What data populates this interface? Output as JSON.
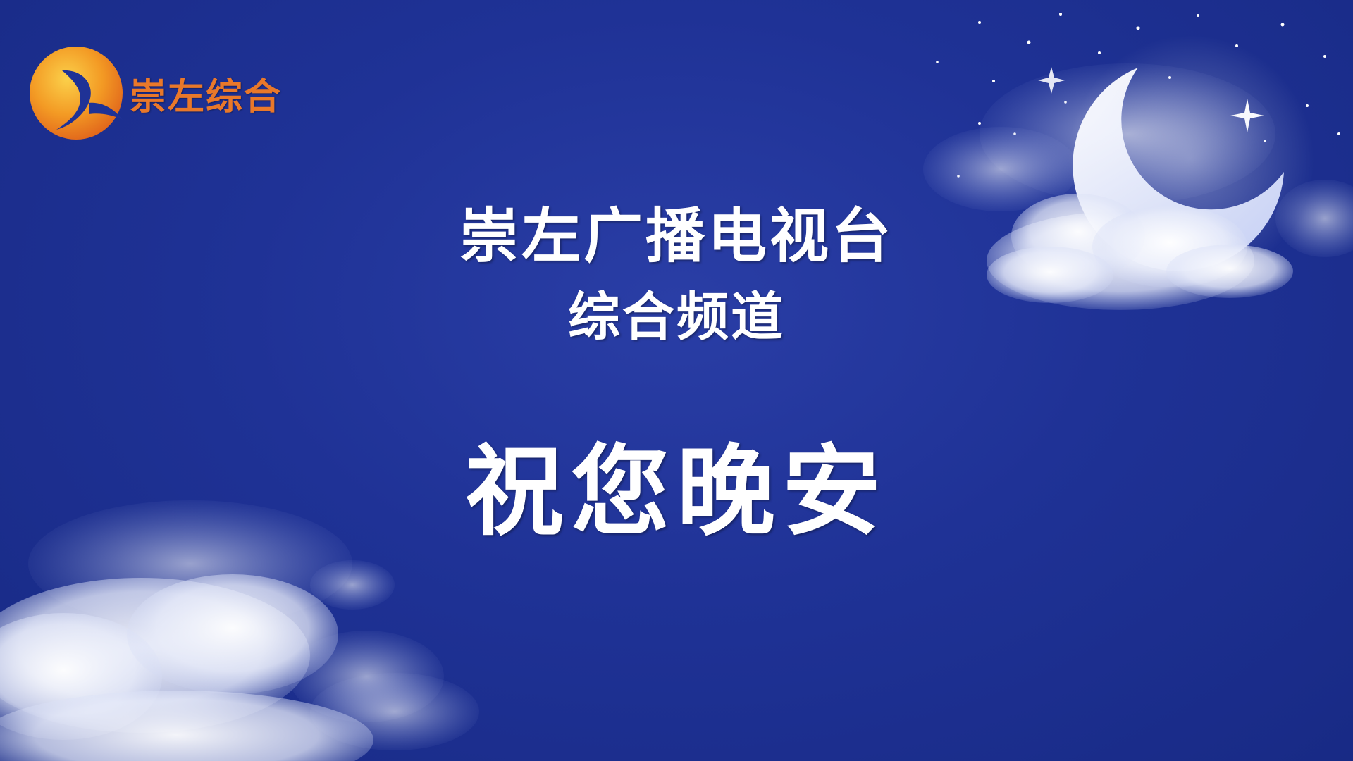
{
  "logo": {
    "text": "崇左综合",
    "icon": "channel-logo-icon",
    "color": "#e9782a"
  },
  "main": {
    "station": "崇左广播电视台",
    "channel": "综合频道",
    "greeting": "祝您晚安"
  },
  "scene": {
    "background_color": "#1f3296",
    "decorations": [
      "crescent-moon-icon",
      "cloud-icon",
      "star-icon"
    ]
  }
}
